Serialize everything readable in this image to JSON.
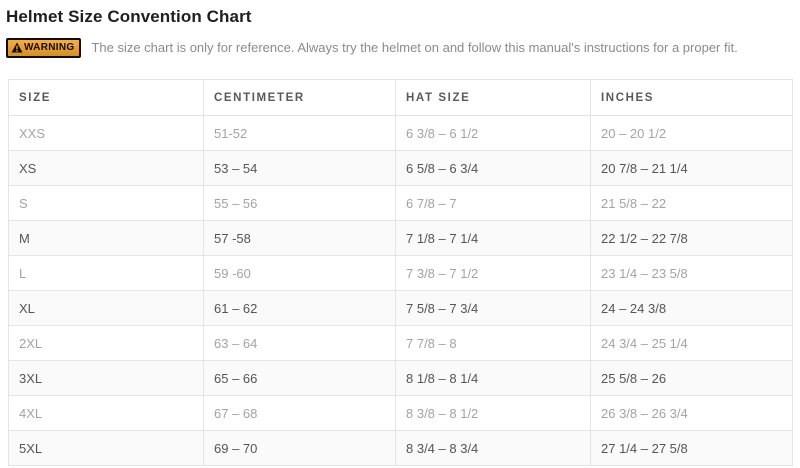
{
  "page": {
    "title": "Helmet Size Convention Chart"
  },
  "warning": {
    "badge_label": "WARNING",
    "icon": "warning-triangle-icon",
    "text": "The size chart is only for reference. Always try the helmet on and follow this manual's instructions for a proper fit."
  },
  "table": {
    "columns": [
      "SIZE",
      "CENTIMETER",
      "HAT SIZE",
      "INCHES"
    ],
    "rows": [
      {
        "size": "XXS",
        "centimeter": "51-52",
        "hat_size": "6 3/8 – 6 1/2",
        "inches": "20 – 20 1/2"
      },
      {
        "size": "XS",
        "centimeter": "53 – 54",
        "hat_size": "6 5/8 – 6 3/4",
        "inches": "20 7/8 – 21 1/4"
      },
      {
        "size": "S",
        "centimeter": "55 – 56",
        "hat_size": "6 7/8 – 7",
        "inches": "21 5/8 – 22"
      },
      {
        "size": "M",
        "centimeter": "57 -58",
        "hat_size": "7 1/8 – 7 1/4",
        "inches": "22 1/2 – 22 7/8"
      },
      {
        "size": "L",
        "centimeter": "59 -60",
        "hat_size": "7 3/8 – 7 1/2",
        "inches": "23 1/4 – 23 5/8"
      },
      {
        "size": "XL",
        "centimeter": "61 – 62",
        "hat_size": "7 5/8 – 7 3/4",
        "inches": "24 – 24 3/8"
      },
      {
        "size": "2XL",
        "centimeter": "63 – 64",
        "hat_size": "7 7/8 – 8",
        "inches": "24 3/4 – 25 1/4"
      },
      {
        "size": "3XL",
        "centimeter": "65 – 66",
        "hat_size": "8 1/8 – 8 1/4",
        "inches": "25 5/8 – 26"
      },
      {
        "size": "4XL",
        "centimeter": "67 – 68",
        "hat_size": "8 3/8 – 8 1/2",
        "inches": "26 3/8 – 26 3/4"
      },
      {
        "size": "5XL",
        "centimeter": "69 – 70",
        "hat_size": "8 3/4 – 8 3/4",
        "inches": "27 1/4 – 27 5/8"
      }
    ]
  },
  "colors": {
    "title_text": "#1f1f1f",
    "warning_badge_bg": "#e89b33",
    "warning_badge_border": "#0d0d0d",
    "warning_text": "#8b8b8b",
    "table_border": "#e4e4e4",
    "header_text": "#5a5a5a",
    "row_light_text": "#a3a3a3",
    "row_dark_text": "#555555",
    "row_alt_bg": "#fafafa"
  }
}
